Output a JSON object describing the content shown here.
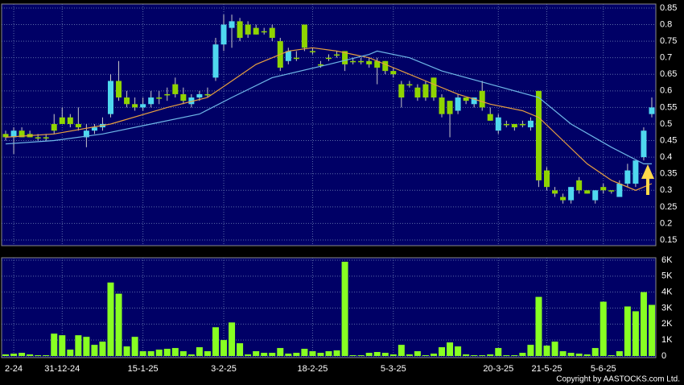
{
  "chart_data": [
    {
      "type": "candlestick",
      "categories": [
        null,
        "2-24",
        null,
        null,
        null,
        null,
        null,
        "31-12-24",
        null,
        null,
        null,
        null,
        null,
        null,
        null,
        null,
        null,
        "15-1-25",
        null,
        null,
        null,
        null,
        null,
        null,
        null,
        null,
        null,
        "3-2-25",
        null,
        null,
        null,
        null,
        null,
        null,
        null,
        null,
        null,
        null,
        "18-2-25",
        null,
        null,
        null,
        null,
        null,
        null,
        null,
        null,
        null,
        "5-3-25",
        null,
        null,
        null,
        null,
        null,
        null,
        null,
        null,
        null,
        null,
        null,
        null,
        "20-3-25",
        null,
        null,
        null,
        null,
        null,
        "21-5-25",
        null,
        null,
        null,
        null,
        null,
        null,
        "5-6-25",
        null,
        null,
        null,
        null,
        null,
        null
      ],
      "open": [
        0.47,
        0.46,
        0.48,
        0.47,
        0.46,
        0.46,
        0.5,
        0.52,
        0.52,
        0.5,
        0.46,
        0.48,
        0.49,
        0.53,
        0.63,
        0.58,
        0.56,
        0.55,
        0.56,
        0.58,
        0.59,
        0.62,
        0.59,
        0.56,
        0.58,
        0.59,
        0.64,
        0.74,
        0.79,
        0.81,
        0.8,
        0.79,
        0.78,
        0.79,
        0.75,
        0.69,
        0.7,
        0.8,
        0.72,
        0.68,
        0.7,
        0.71,
        0.72,
        0.69,
        0.69,
        0.69,
        0.69,
        0.69,
        0.66,
        0.62,
        0.62,
        0.61,
        0.62,
        0.64,
        0.58,
        0.57,
        0.54,
        0.58,
        0.56,
        0.6,
        0.53,
        0.48,
        0.5,
        0.5,
        0.5,
        0.49,
        0.6,
        0.36,
        0.3,
        0.28,
        0.27,
        0.33,
        0.3,
        0.27,
        0.31,
        0.3,
        0.28,
        0.32,
        0.32,
        0.4,
        0.53
      ],
      "high": [
        0.48,
        0.49,
        0.49,
        0.48,
        0.47,
        0.47,
        0.53,
        0.55,
        0.53,
        0.55,
        0.5,
        0.5,
        0.52,
        0.65,
        0.69,
        0.6,
        0.58,
        0.58,
        0.6,
        0.6,
        0.61,
        0.64,
        0.61,
        0.59,
        0.6,
        0.61,
        0.76,
        0.83,
        0.83,
        0.82,
        0.81,
        0.8,
        0.79,
        0.8,
        0.76,
        0.73,
        0.72,
        0.8,
        0.73,
        0.69,
        0.71,
        0.72,
        0.72,
        0.7,
        0.7,
        0.7,
        0.7,
        0.69,
        0.67,
        0.63,
        0.63,
        0.62,
        0.63,
        0.64,
        0.59,
        0.57,
        0.59,
        0.58,
        0.58,
        0.63,
        0.55,
        0.53,
        0.51,
        0.5,
        0.51,
        0.52,
        0.6,
        0.37,
        0.31,
        0.29,
        0.31,
        0.34,
        0.3,
        0.3,
        0.32,
        0.3,
        0.33,
        0.38,
        0.39,
        0.49,
        0.58
      ],
      "low": [
        0.45,
        0.41,
        0.46,
        0.46,
        0.45,
        0.45,
        0.47,
        0.5,
        0.49,
        0.48,
        0.43,
        0.47,
        0.48,
        0.52,
        0.57,
        0.55,
        0.54,
        0.54,
        0.55,
        0.56,
        0.57,
        0.58,
        0.56,
        0.55,
        0.57,
        0.58,
        0.63,
        0.72,
        0.73,
        0.75,
        0.76,
        0.77,
        0.77,
        0.75,
        0.66,
        0.68,
        0.69,
        0.72,
        0.71,
        0.67,
        0.69,
        0.7,
        0.66,
        0.68,
        0.68,
        0.67,
        0.62,
        0.65,
        0.64,
        0.55,
        0.61,
        0.57,
        0.57,
        0.57,
        0.52,
        0.46,
        0.53,
        0.56,
        0.55,
        0.54,
        0.51,
        0.47,
        0.49,
        0.48,
        0.49,
        0.48,
        0.31,
        0.3,
        0.28,
        0.26,
        0.26,
        0.29,
        0.29,
        0.26,
        0.29,
        0.29,
        0.28,
        0.31,
        0.31,
        0.39,
        0.52
      ],
      "close": [
        0.46,
        0.48,
        0.46,
        0.46,
        0.46,
        0.46,
        0.48,
        0.5,
        0.5,
        0.49,
        0.48,
        0.49,
        0.5,
        0.63,
        0.58,
        0.56,
        0.55,
        0.56,
        0.58,
        0.58,
        0.59,
        0.59,
        0.57,
        0.58,
        0.59,
        0.59,
        0.74,
        0.8,
        0.81,
        0.76,
        0.77,
        0.77,
        0.78,
        0.76,
        0.67,
        0.72,
        0.7,
        0.73,
        0.72,
        0.68,
        0.7,
        0.71,
        0.68,
        0.69,
        0.69,
        0.68,
        0.67,
        0.66,
        0.65,
        0.58,
        0.62,
        0.58,
        0.58,
        0.58,
        0.53,
        0.53,
        0.58,
        0.57,
        0.58,
        0.55,
        0.51,
        0.52,
        0.5,
        0.49,
        0.5,
        0.51,
        0.33,
        0.31,
        0.29,
        0.27,
        0.31,
        0.3,
        0.29,
        0.3,
        0.3,
        0.3,
        0.32,
        0.36,
        0.39,
        0.48,
        0.55
      ],
      "up_color": "#4fd8ef",
      "down_color": "#8fd400",
      "wick_color": "#c8c8c8",
      "series": [
        {
          "color": "#e8a040",
          "x": [
            0,
            6,
            13,
            20,
            25,
            28,
            31,
            35,
            38,
            41,
            45,
            48,
            52,
            56,
            60,
            64,
            66,
            69,
            72,
            75,
            78,
            80
          ],
          "values": [
            0.46,
            0.47,
            0.5,
            0.55,
            0.58,
            0.63,
            0.68,
            0.72,
            0.73,
            0.72,
            0.7,
            0.67,
            0.63,
            0.59,
            0.56,
            0.54,
            0.52,
            0.45,
            0.38,
            0.33,
            0.3,
            0.32
          ]
        },
        {
          "color": "#6fb8e8",
          "x": [
            0,
            6,
            12,
            18,
            24,
            28,
            33,
            40,
            45,
            46,
            50,
            54,
            60,
            66,
            70,
            75,
            79,
            80
          ],
          "values": [
            0.44,
            0.45,
            0.47,
            0.5,
            0.53,
            0.58,
            0.64,
            0.68,
            0.71,
            0.72,
            0.7,
            0.66,
            0.62,
            0.58,
            0.5,
            0.43,
            0.38,
            0.38
          ]
        }
      ],
      "ylim": [
        0.133,
        0.862
      ],
      "yticks": [
        0.15,
        0.2,
        0.25,
        0.3,
        0.35,
        0.4,
        0.45,
        0.5,
        0.55,
        0.6,
        0.65,
        0.7,
        0.75,
        0.8,
        0.85
      ],
      "grid": true,
      "copyright": "Copyright by AASTOCKS.com Ltd."
    },
    {
      "type": "bar",
      "values": [
        100,
        150,
        200,
        100,
        50,
        50,
        1400,
        1300,
        400,
        1300,
        1200,
        700,
        900,
        4600,
        3900,
        600,
        1200,
        300,
        300,
        400,
        450,
        500,
        300,
        100,
        550,
        300,
        1800,
        1000,
        2100,
        800,
        100,
        300,
        200,
        200,
        500,
        150,
        200,
        450,
        300,
        200,
        300,
        350,
        5900,
        50,
        50,
        200,
        250,
        200,
        100,
        700,
        100,
        300,
        50,
        150,
        550,
        850,
        600,
        100,
        50,
        50,
        100,
        500,
        50,
        50,
        200,
        700,
        3700,
        650,
        900,
        300,
        200,
        150,
        100,
        500,
        3400,
        50,
        300,
        3100,
        2800,
        4000,
        3200
      ],
      "color": "#88ff22",
      "ylim": [
        0,
        6150
      ],
      "yticks": [
        {
          "value": 0,
          "label": "0"
        },
        {
          "value": 1000,
          "label": "1K"
        },
        {
          "value": 2000,
          "label": "2K"
        },
        {
          "value": 3000,
          "label": "3K"
        },
        {
          "value": 4000,
          "label": "4K"
        },
        {
          "value": 5000,
          "label": "5K"
        },
        {
          "value": 6000,
          "label": "6K"
        }
      ],
      "grid": true
    }
  ]
}
